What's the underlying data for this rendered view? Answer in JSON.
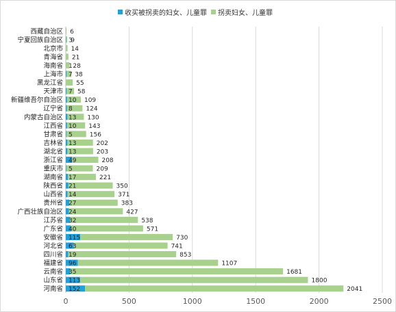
{
  "chart_data": {
    "type": "bar",
    "orientation": "horizontal",
    "stacked": true,
    "categories": [
      "西藏自治区",
      "宁夏回族自治区",
      "北京市",
      "青海省",
      "海南省",
      "上海市",
      "黑龙江省",
      "天津市",
      "新疆维吾尔自治区",
      "辽宁省",
      "内蒙古自治区",
      "江西省",
      "甘肃省",
      "吉林省",
      "湖北省",
      "浙江省",
      "重庆市",
      "湖南省",
      "陕西省",
      "山西省",
      "贵州省",
      "广西壮族自治区",
      "江苏省",
      "广东省",
      "安徽省",
      "河北省",
      "四川省",
      "福建省",
      "云南省",
      "山东省",
      "河南省"
    ],
    "series": [
      {
        "name": "收买被拐卖的妇女、儿童罪",
        "color": "#1fa2dc",
        "values": [
          0,
          3,
          0,
          0,
          1,
          7,
          0,
          7,
          10,
          8,
          13,
          10,
          5,
          13,
          13,
          49,
          5,
          17,
          21,
          14,
          27,
          24,
          32,
          40,
          115,
          63,
          19,
          96,
          35,
          113,
          152
        ],
        "labels": [
          "",
          "3",
          "",
          "",
          "1",
          "7",
          "",
          "7",
          "10",
          "8",
          "13",
          "10",
          "5",
          "13",
          "13",
          "49",
          "5",
          "17",
          "21",
          "14",
          "27",
          "24",
          "32",
          "40",
          "115",
          "63",
          "19",
          "96",
          "35",
          "113",
          "152"
        ]
      },
      {
        "name": "拐卖妇女、儿童罪",
        "color": "#a9d18e",
        "values": [
          6,
          9,
          14,
          21,
          28,
          38,
          55,
          58,
          109,
          124,
          130,
          143,
          156,
          202,
          203,
          208,
          209,
          221,
          350,
          371,
          383,
          427,
          538,
          571,
          730,
          741,
          853,
          1107,
          1681,
          1800,
          2041
        ]
      }
    ],
    "xlim": [
      0,
      2500
    ],
    "xticks": [
      "0",
      "500",
      "1000",
      "1500",
      "2000",
      "2500"
    ],
    "grid": true,
    "legend_position": "top"
  }
}
